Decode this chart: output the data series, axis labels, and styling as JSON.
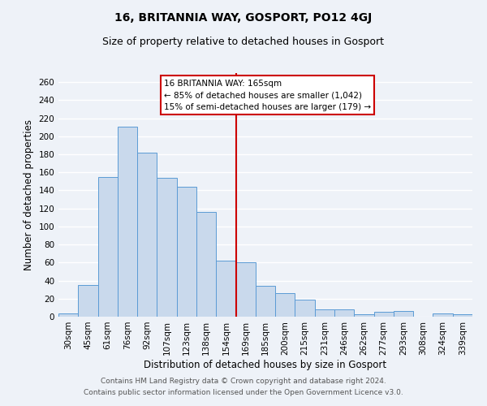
{
  "title": "16, BRITANNIA WAY, GOSPORT, PO12 4GJ",
  "subtitle": "Size of property relative to detached houses in Gosport",
  "xlabel": "Distribution of detached houses by size in Gosport",
  "ylabel": "Number of detached properties",
  "categories": [
    "30sqm",
    "45sqm",
    "61sqm",
    "76sqm",
    "92sqm",
    "107sqm",
    "123sqm",
    "138sqm",
    "154sqm",
    "169sqm",
    "185sqm",
    "200sqm",
    "215sqm",
    "231sqm",
    "246sqm",
    "262sqm",
    "277sqm",
    "293sqm",
    "308sqm",
    "324sqm",
    "339sqm"
  ],
  "values": [
    4,
    35,
    155,
    211,
    182,
    154,
    144,
    116,
    62,
    60,
    34,
    26,
    19,
    8,
    8,
    3,
    5,
    6,
    0,
    4,
    3
  ],
  "bar_color": "#c9d9ec",
  "bar_edge_color": "#5b9bd5",
  "vline_x_index": 9,
  "vline_color": "#cc0000",
  "ylim": [
    0,
    270
  ],
  "yticks": [
    0,
    20,
    40,
    60,
    80,
    100,
    120,
    140,
    160,
    180,
    200,
    220,
    240,
    260
  ],
  "annotation_title": "16 BRITANNIA WAY: 165sqm",
  "annotation_line1": "← 85% of detached houses are smaller (1,042)",
  "annotation_line2": "15% of semi-detached houses are larger (179) →",
  "annotation_box_color": "#ffffff",
  "annotation_box_edge": "#cc0000",
  "footer_line1": "Contains HM Land Registry data © Crown copyright and database right 2024.",
  "footer_line2": "Contains public sector information licensed under the Open Government Licence v3.0.",
  "bg_color": "#eef2f8",
  "grid_color": "#ffffff",
  "title_fontsize": 10,
  "subtitle_fontsize": 9,
  "axis_label_fontsize": 8.5,
  "tick_fontsize": 7.5,
  "annotation_title_fontsize": 8,
  "annotation_body_fontsize": 7.5,
  "footer_fontsize": 6.5
}
